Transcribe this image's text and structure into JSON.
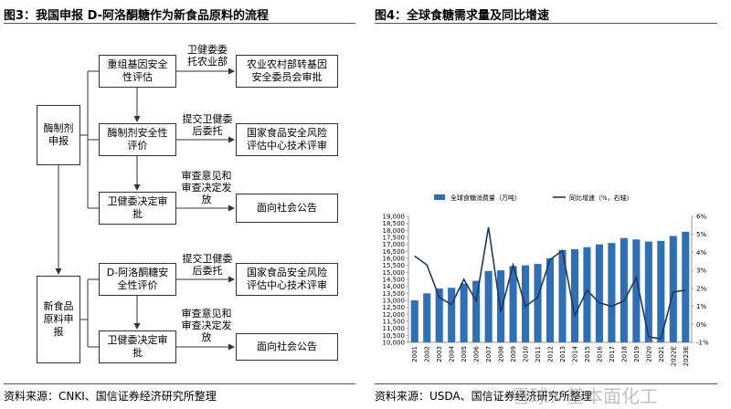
{
  "left": {
    "title": "图3：我国申报 D-阿洛酮糖作为新食品原料的流程",
    "nodes": [
      "酶制剂申报",
      "重组基因安全性评估",
      "农业农村部转基因安全委员会审批",
      "酶制剂安全性评价",
      "国家食品安全风险评估中心技术评审",
      "卫健委决定审批",
      "面向社会公告",
      "新食品原料申报",
      "D-阿洛酮糖安全性评价",
      "国家食品安全风险评估中心技术评审",
      "卫健委决定审批",
      "面向社会公告"
    ],
    "edge_labels": [
      "卫健委委托农业部",
      "提交卫健委后委托",
      "审查意见和审查决定发放",
      "提交卫健委后委托",
      "审查意见和审查决定发放"
    ],
    "source": "资料来源：CNKI、国信证券经济研究所整理"
  },
  "right_source": "资料来源：USDA、国信证券经济研究所整理",
  "watermark": "雪球：基本面化工",
  "chart_data": {
    "type": "bar",
    "title": "图4：全球食糖需求量及同比增速",
    "categories": [
      "2001",
      "2002",
      "2003",
      "2004",
      "2005",
      "2006",
      "2007",
      "2008",
      "2009",
      "2010",
      "2011",
      "2012",
      "2013",
      "2014",
      "2015",
      "2016",
      "2017",
      "2018",
      "2019",
      "2020",
      "2021",
      "2022E",
      "2023E"
    ],
    "series": [
      {
        "name": "全球食糖消费量（万吨）",
        "type": "bar",
        "color": "#2f6fb5",
        "values": [
          13000,
          13500,
          13850,
          13900,
          14200,
          14400,
          15100,
          15150,
          15450,
          15500,
          15600,
          16000,
          16600,
          16650,
          16800,
          17000,
          17100,
          17450,
          17350,
          17200,
          17250,
          17600,
          17900
        ]
      },
      {
        "name": "同比增速（%，右轴）",
        "type": "line",
        "axis": "y2",
        "color": "#1f3864",
        "values": [
          3.8,
          3.3,
          1.5,
          1.1,
          2.5,
          1.3,
          5.4,
          0.7,
          3.3,
          1.0,
          1.5,
          3.6,
          4.1,
          0.5,
          1.9,
          1.2,
          1.0,
          1.3,
          2.6,
          -0.7,
          -0.8,
          1.8,
          1.9
        ]
      }
    ],
    "ylim": [
      10000,
      19000
    ],
    "yticks": [
      {
        "value": 10000,
        "label": "10,000"
      },
      {
        "value": 10500,
        "label": "10,500"
      },
      {
        "value": 11000,
        "label": "11,000"
      },
      {
        "value": 11500,
        "label": "11,500"
      },
      {
        "value": 12000,
        "label": "12,000"
      },
      {
        "value": 12500,
        "label": "12,500"
      },
      {
        "value": 13000,
        "label": "13,000"
      },
      {
        "value": 13500,
        "label": "13,500"
      },
      {
        "value": 14000,
        "label": "14,000"
      },
      {
        "value": 14500,
        "label": "14,500"
      },
      {
        "value": 15000,
        "label": "15,000"
      },
      {
        "value": 15500,
        "label": "15,500"
      },
      {
        "value": 16000,
        "label": "16,000"
      },
      {
        "value": 16500,
        "label": "16,500"
      },
      {
        "value": 17000,
        "label": "17,000"
      },
      {
        "value": 17500,
        "label": "17,500"
      },
      {
        "value": 18000,
        "label": "18,000"
      },
      {
        "value": 18500,
        "label": "18,500"
      },
      {
        "value": 19000,
        "label": "19,000"
      }
    ],
    "y2lim": [
      -1,
      6
    ],
    "y2ticks": [
      {
        "value": -1,
        "label": "-1%"
      },
      {
        "value": 0,
        "label": "0%"
      },
      {
        "value": 1,
        "label": "1%"
      },
      {
        "value": 2,
        "label": "2%"
      },
      {
        "value": 3,
        "label": "3%"
      },
      {
        "value": 4,
        "label": "4%"
      },
      {
        "value": 5,
        "label": "5%"
      },
      {
        "value": 6,
        "label": "6%"
      }
    ],
    "legend": "top"
  }
}
